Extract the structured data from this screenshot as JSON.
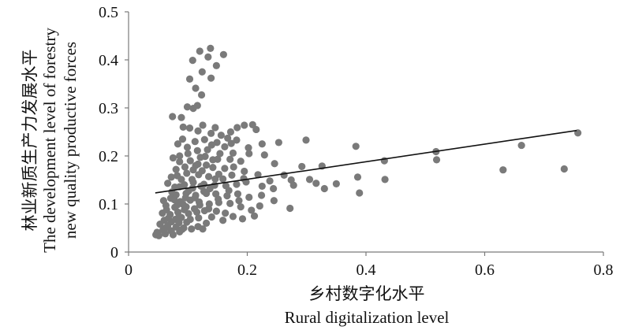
{
  "chart_data": {
    "type": "scatter",
    "title": "",
    "xlabel_cn": "乡村数字化水平",
    "xlabel_en": "Rural digitalization level",
    "ylabel_cn": "林业新质生产力发展水平",
    "ylabel_en_1": "The development level of forestry",
    "ylabel_en_2": "new quality productive forces",
    "xlim": [
      0,
      0.8
    ],
    "ylim": [
      0,
      0.5
    ],
    "x_ticks": [
      0,
      0.2,
      0.4,
      0.6,
      0.8
    ],
    "x_tick_labels": [
      "0",
      "0.2",
      "0.4",
      "0.6",
      "0.8"
    ],
    "y_ticks": [
      0,
      0.1,
      0.2,
      0.3,
      0.4,
      0.5
    ],
    "y_tick_labels": [
      "0",
      "0.1",
      "0.2",
      "0.3",
      "0.4",
      "0.5"
    ],
    "grid": false,
    "legend": "none",
    "colors": {
      "points": "#7a7a7a",
      "trendline": "#111111",
      "axis": "#7a7a7a"
    },
    "trendline": {
      "x": [
        0.045,
        0.755
      ],
      "y": [
        0.123,
        0.253
      ]
    },
    "points": [
      [
        0.138,
        0.424
      ],
      [
        0.12,
        0.418
      ],
      [
        0.16,
        0.411
      ],
      [
        0.108,
        0.399
      ],
      [
        0.134,
        0.406
      ],
      [
        0.148,
        0.388
      ],
      [
        0.124,
        0.375
      ],
      [
        0.103,
        0.36
      ],
      [
        0.139,
        0.362
      ],
      [
        0.113,
        0.341
      ],
      [
        0.123,
        0.327
      ],
      [
        0.099,
        0.302
      ],
      [
        0.109,
        0.299
      ],
      [
        0.116,
        0.305
      ],
      [
        0.089,
        0.28
      ],
      [
        0.074,
        0.282
      ],
      [
        0.092,
        0.26
      ],
      [
        0.103,
        0.258
      ],
      [
        0.125,
        0.264
      ],
      [
        0.146,
        0.259
      ],
      [
        0.117,
        0.252
      ],
      [
        0.139,
        0.247
      ],
      [
        0.156,
        0.243
      ],
      [
        0.183,
        0.259
      ],
      [
        0.195,
        0.264
      ],
      [
        0.209,
        0.265
      ],
      [
        0.215,
        0.255
      ],
      [
        0.167,
        0.237
      ],
      [
        0.173,
        0.226
      ],
      [
        0.149,
        0.228
      ],
      [
        0.128,
        0.234
      ],
      [
        0.112,
        0.23
      ],
      [
        0.091,
        0.235
      ],
      [
        0.083,
        0.225
      ],
      [
        0.099,
        0.218
      ],
      [
        0.133,
        0.213
      ],
      [
        0.154,
        0.205
      ],
      [
        0.176,
        0.206
      ],
      [
        0.202,
        0.217
      ],
      [
        0.225,
        0.225
      ],
      [
        0.253,
        0.228
      ],
      [
        0.299,
        0.233
      ],
      [
        0.171,
        0.193
      ],
      [
        0.142,
        0.192
      ],
      [
        0.121,
        0.197
      ],
      [
        0.104,
        0.19
      ],
      [
        0.086,
        0.2
      ],
      [
        0.075,
        0.196
      ],
      [
        0.113,
        0.18
      ],
      [
        0.131,
        0.181
      ],
      [
        0.162,
        0.174
      ],
      [
        0.189,
        0.189
      ],
      [
        0.203,
        0.205
      ],
      [
        0.229,
        0.202
      ],
      [
        0.246,
        0.184
      ],
      [
        0.383,
        0.22
      ],
      [
        0.431,
        0.19
      ],
      [
        0.518,
        0.209
      ],
      [
        0.519,
        0.192
      ],
      [
        0.662,
        0.222
      ],
      [
        0.757,
        0.248
      ],
      [
        0.631,
        0.171
      ],
      [
        0.734,
        0.173
      ],
      [
        0.326,
        0.179
      ],
      [
        0.292,
        0.178
      ],
      [
        0.262,
        0.16
      ],
      [
        0.238,
        0.148
      ],
      [
        0.218,
        0.161
      ],
      [
        0.194,
        0.153
      ],
      [
        0.174,
        0.16
      ],
      [
        0.152,
        0.162
      ],
      [
        0.135,
        0.157
      ],
      [
        0.118,
        0.161
      ],
      [
        0.098,
        0.164
      ],
      [
        0.082,
        0.159
      ],
      [
        0.066,
        0.143
      ],
      [
        0.078,
        0.135
      ],
      [
        0.094,
        0.14
      ],
      [
        0.109,
        0.145
      ],
      [
        0.127,
        0.141
      ],
      [
        0.145,
        0.139
      ],
      [
        0.164,
        0.138
      ],
      [
        0.182,
        0.141
      ],
      [
        0.198,
        0.146
      ],
      [
        0.225,
        0.137
      ],
      [
        0.244,
        0.132
      ],
      [
        0.274,
        0.15
      ],
      [
        0.278,
        0.139
      ],
      [
        0.305,
        0.151
      ],
      [
        0.316,
        0.143
      ],
      [
        0.35,
        0.142
      ],
      [
        0.33,
        0.132
      ],
      [
        0.386,
        0.156
      ],
      [
        0.389,
        0.123
      ],
      [
        0.432,
        0.151
      ],
      [
        0.272,
        0.091
      ],
      [
        0.245,
        0.107
      ],
      [
        0.224,
        0.118
      ],
      [
        0.203,
        0.114
      ],
      [
        0.184,
        0.121
      ],
      [
        0.166,
        0.117
      ],
      [
        0.147,
        0.121
      ],
      [
        0.131,
        0.122
      ],
      [
        0.113,
        0.118
      ],
      [
        0.097,
        0.122
      ],
      [
        0.08,
        0.119
      ],
      [
        0.071,
        0.112
      ],
      [
        0.087,
        0.105
      ],
      [
        0.104,
        0.108
      ],
      [
        0.119,
        0.104
      ],
      [
        0.136,
        0.1
      ],
      [
        0.152,
        0.103
      ],
      [
        0.171,
        0.101
      ],
      [
        0.189,
        0.094
      ],
      [
        0.207,
        0.087
      ],
      [
        0.221,
        0.096
      ],
      [
        0.212,
        0.075
      ],
      [
        0.163,
        0.081
      ],
      [
        0.148,
        0.085
      ],
      [
        0.128,
        0.086
      ],
      [
        0.111,
        0.09
      ],
      [
        0.094,
        0.088
      ],
      [
        0.078,
        0.093
      ],
      [
        0.063,
        0.097
      ],
      [
        0.057,
        0.081
      ],
      [
        0.07,
        0.078
      ],
      [
        0.085,
        0.074
      ],
      [
        0.101,
        0.08
      ],
      [
        0.118,
        0.071
      ],
      [
        0.14,
        0.073
      ],
      [
        0.159,
        0.066
      ],
      [
        0.176,
        0.074
      ],
      [
        0.192,
        0.069
      ],
      [
        0.098,
        0.062
      ],
      [
        0.085,
        0.061
      ],
      [
        0.072,
        0.063
      ],
      [
        0.06,
        0.066
      ],
      [
        0.053,
        0.058
      ],
      [
        0.066,
        0.055
      ],
      [
        0.08,
        0.052
      ],
      [
        0.093,
        0.05
      ],
      [
        0.106,
        0.048
      ],
      [
        0.058,
        0.046
      ],
      [
        0.072,
        0.044
      ],
      [
        0.086,
        0.042
      ],
      [
        0.048,
        0.041
      ],
      [
        0.062,
        0.038
      ],
      [
        0.051,
        0.034
      ],
      [
        0.046,
        0.036
      ],
      [
        0.075,
        0.036
      ],
      [
        0.09,
        0.047
      ],
      [
        0.117,
        0.053
      ],
      [
        0.131,
        0.06
      ],
      [
        0.125,
        0.048
      ],
      [
        0.104,
        0.068
      ],
      [
        0.115,
        0.083
      ],
      [
        0.092,
        0.099
      ],
      [
        0.083,
        0.083
      ],
      [
        0.067,
        0.07
      ],
      [
        0.077,
        0.109
      ],
      [
        0.101,
        0.127
      ],
      [
        0.086,
        0.136
      ],
      [
        0.073,
        0.125
      ],
      [
        0.107,
        0.151
      ],
      [
        0.124,
        0.169
      ],
      [
        0.142,
        0.176
      ],
      [
        0.159,
        0.152
      ],
      [
        0.177,
        0.177
      ],
      [
        0.195,
        0.168
      ],
      [
        0.095,
        0.177
      ],
      [
        0.08,
        0.172
      ],
      [
        0.086,
        0.188
      ],
      [
        0.1,
        0.205
      ],
      [
        0.116,
        0.211
      ],
      [
        0.072,
        0.156
      ],
      [
        0.089,
        0.151
      ],
      [
        0.059,
        0.107
      ],
      [
        0.064,
        0.088
      ],
      [
        0.089,
        0.072
      ],
      [
        0.135,
        0.09
      ],
      [
        0.151,
        0.11
      ],
      [
        0.169,
        0.128
      ],
      [
        0.186,
        0.107
      ],
      [
        0.137,
        0.132
      ],
      [
        0.122,
        0.137
      ],
      [
        0.108,
        0.133
      ],
      [
        0.109,
        0.171
      ],
      [
        0.129,
        0.199
      ],
      [
        0.14,
        0.223
      ],
      [
        0.162,
        0.219
      ],
      [
        0.182,
        0.233
      ],
      [
        0.172,
        0.25
      ],
      [
        0.117,
        0.183
      ],
      [
        0.15,
        0.193
      ],
      [
        0.062,
        0.05
      ],
      [
        0.079,
        0.068
      ],
      [
        0.097,
        0.094
      ],
      [
        0.112,
        0.113
      ],
      [
        0.127,
        0.126
      ],
      [
        0.146,
        0.152
      ],
      [
        0.096,
        0.113
      ],
      [
        0.082,
        0.098
      ],
      [
        0.12,
        0.098
      ]
    ]
  }
}
